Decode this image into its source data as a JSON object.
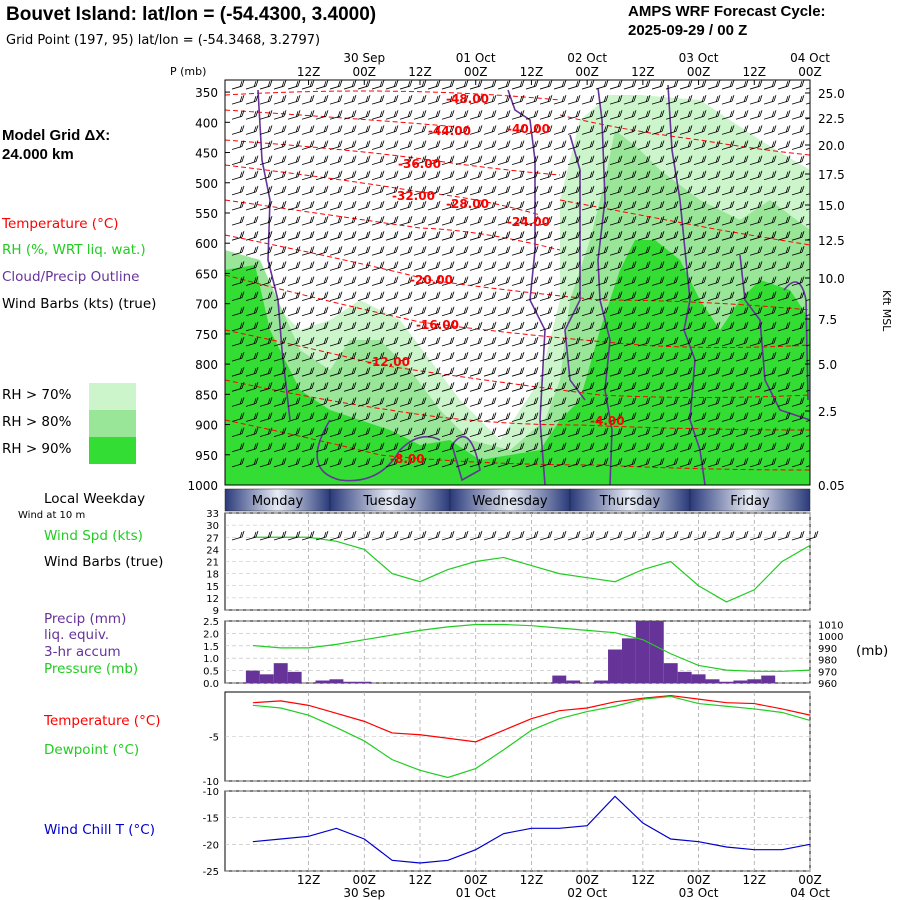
{
  "header": {
    "title": "Bouvet Island:  lat/lon = (-54.4300, 3.4000)",
    "grid_point": "Grid Point (197, 95) lat/lon = (-54.3468, 3.2797)",
    "cycle_line1": "AMPS WRF Forecast Cycle:",
    "cycle_line2": "2025-09-29 / 00  Z",
    "model_grid_label": "Model Grid ΔX:",
    "model_grid_value": " 24.000 km"
  },
  "legend": {
    "temperature": "Temperature (°C)",
    "rh": "RH (%, WRT liq. wat.)",
    "cloud": "Cloud/Precip Outline",
    "wind": "Wind Barbs (kts) (true)",
    "rh70": "RH > 70%",
    "rh80": "RH > 80%",
    "rh90": "RH > 90%",
    "rh70_color": "#ccf5cc",
    "rh80_color": "#99e699",
    "rh90_color": "#33dd33"
  },
  "colors": {
    "temperature": "#ff0000",
    "dewpoint": "#22cc22",
    "pressure": "#22cc22",
    "precip": "#663399",
    "cloud_outline": "#663399",
    "windchill": "#0000cc",
    "weekday_bar": "#3a4a8a"
  },
  "time_axis": {
    "top_dates": [
      "30 Sep",
      "01 Oct",
      "02 Oct",
      "03 Oct",
      "04 Oct"
    ],
    "ticks": [
      "12Z",
      "00Z",
      "12Z",
      "00Z",
      "12Z",
      "00Z",
      "12Z",
      "00Z",
      "12Z",
      "00Z"
    ],
    "bottom_ticks": [
      "12Z",
      "00Z",
      "12Z",
      "00Z",
      "12Z",
      "00Z",
      "12Z",
      "00Z",
      "12Z",
      "00Z"
    ],
    "bottom_dates": [
      "30 Sep",
      "01 Oct",
      "02 Oct",
      "03 Oct",
      "04 Oct"
    ]
  },
  "weekday": {
    "label": "Local Weekday",
    "wind_note": "Wind at 10 m",
    "days": [
      "Monday",
      "Tuesday",
      "Wednesday",
      "Thursday",
      "Friday"
    ]
  },
  "panel_labels": {
    "pressure_axis": "P (mb)",
    "height_axis": "Kft MSL",
    "wind_spd": "Wind Spd (kts)",
    "wind_barbs": "Wind Barbs (true)",
    "precip": "Precip (mm)",
    "liq": "liq. equiv.",
    "accum": "3-hr accum",
    "pressure": "Pressure (mb)",
    "pressure_unit": "(mb)",
    "temperature": "Temperature (°C)",
    "dewpoint": "Dewpoint (°C)",
    "windchill": "Wind Chill T (°C)"
  },
  "chart_data": [
    {
      "type": "heatmap",
      "name": "cross_section",
      "y_pressure_ticks": [
        350,
        400,
        450,
        500,
        550,
        600,
        650,
        700,
        750,
        800,
        850,
        900,
        950,
        1000
      ],
      "y_height_ticks": [
        "25.0",
        "22.5",
        "20.0",
        "17.5",
        "15.0",
        "12.5",
        "10.0",
        "7.5",
        "5.0",
        "2.5",
        "0.05"
      ],
      "temperature_contour_labels": [
        "-48.00",
        "-44.00",
        "-40.00",
        "-36.00",
        "-32.00",
        "-28.00",
        "-24.00",
        "-20.00",
        "-16.00",
        "-12.00",
        "-8.00",
        "-4.00"
      ]
    },
    {
      "type": "line",
      "name": "wind_speed",
      "yticks": [
        9,
        12,
        15,
        18,
        21,
        24,
        27,
        30,
        33
      ],
      "ylim": [
        9,
        33
      ],
      "x_hours": [
        0,
        6,
        12,
        18,
        24,
        30,
        36,
        42,
        48,
        54,
        60,
        66,
        72,
        78,
        84,
        90,
        96,
        102,
        108,
        114,
        120
      ],
      "values": [
        27,
        27,
        27,
        26,
        24,
        18,
        16,
        19,
        21,
        22,
        20,
        18,
        17,
        16,
        19,
        21,
        15,
        11,
        14,
        21,
        25
      ]
    },
    {
      "type": "bar",
      "name": "precip",
      "yticks": [
        "0.0",
        "0.5",
        "1.0",
        "1.5",
        "2.0",
        "2.5"
      ],
      "ylim": [
        0,
        2.5
      ],
      "x_hours": [
        0,
        3,
        6,
        9,
        12,
        15,
        18,
        21,
        24,
        27,
        30,
        33,
        36,
        39,
        42,
        45,
        48,
        51,
        54,
        57,
        60,
        63,
        66,
        69,
        72,
        75,
        78,
        81,
        84,
        87,
        90,
        93,
        96,
        99,
        102,
        105,
        108,
        111,
        114,
        117,
        120
      ],
      "values": [
        0.5,
        0.35,
        0.8,
        0.45,
        0,
        0.1,
        0.15,
        0.05,
        0.05,
        0,
        0,
        0,
        0,
        0,
        0,
        0,
        0,
        0,
        0,
        0,
        0,
        0,
        0.3,
        0.1,
        0,
        0.1,
        1.35,
        1.8,
        2.5,
        2.5,
        0.8,
        0.45,
        0.35,
        0.15,
        0.05,
        0.1,
        0.15,
        0.3,
        0,
        0,
        0
      ],
      "pressure_yticks": [
        960,
        970,
        980,
        990,
        1000,
        1010
      ],
      "pressure_ylim": [
        960,
        1013
      ],
      "pressure_x_hours": [
        0,
        6,
        12,
        18,
        24,
        30,
        36,
        42,
        48,
        54,
        60,
        66,
        72,
        78,
        84,
        90,
        96,
        102,
        108,
        114,
        120
      ],
      "pressure_values": [
        992,
        990,
        990,
        993,
        997,
        1001,
        1005,
        1008,
        1010,
        1010,
        1009,
        1007,
        1005,
        1003,
        997,
        985,
        975,
        971,
        970,
        970,
        971
      ]
    },
    {
      "type": "line",
      "name": "temperature_dewpoint",
      "yticks": [
        "-5",
        "-10"
      ],
      "ylim": [
        -10,
        0
      ],
      "x_hours": [
        0,
        6,
        12,
        18,
        24,
        30,
        36,
        42,
        48,
        54,
        60,
        66,
        72,
        78,
        84,
        90,
        96,
        102,
        108,
        114,
        120
      ],
      "series": [
        {
          "name": "Temperature (°C)",
          "values": [
            -1.2,
            -1.0,
            -1.5,
            -2.4,
            -3.3,
            -4.6,
            -4.8,
            -5.2,
            -5.6,
            -4.3,
            -3.0,
            -2.1,
            -1.8,
            -1.1,
            -0.7,
            -0.4,
            -0.8,
            -1.2,
            -1.3,
            -1.9,
            -2.6
          ]
        },
        {
          "name": "Dewpoint (°C)",
          "values": [
            -1.5,
            -1.8,
            -2.6,
            -4.0,
            -5.5,
            -7.6,
            -8.8,
            -9.6,
            -8.6,
            -6.5,
            -4.3,
            -3.0,
            -2.2,
            -1.6,
            -0.8,
            -0.5,
            -1.3,
            -1.6,
            -1.9,
            -2.3,
            -3.2
          ]
        }
      ]
    },
    {
      "type": "line",
      "name": "wind_chill",
      "yticks": [
        -10,
        -15,
        -20,
        -25
      ],
      "ylim": [
        -25,
        -10
      ],
      "x_hours": [
        0,
        6,
        12,
        18,
        24,
        30,
        36,
        42,
        48,
        54,
        60,
        66,
        72,
        78,
        84,
        90,
        96,
        102,
        108,
        114,
        120
      ],
      "values": [
        -19.5,
        -19,
        -18.5,
        -17,
        -19,
        -23,
        -23.5,
        -23,
        -21,
        -18,
        -17,
        -17,
        -16.5,
        -11,
        -16,
        -19,
        -19.5,
        -20.5,
        -21,
        -21,
        -20
      ]
    }
  ]
}
